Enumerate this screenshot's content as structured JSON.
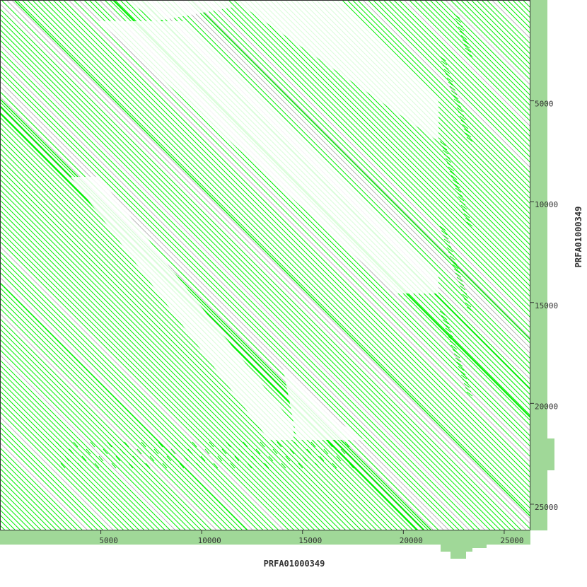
{
  "chart_data": {
    "type": "dotplot",
    "title": "",
    "xlabel": "PRFA01000349",
    "ylabel": "PRFA01000349",
    "xlim": [
      0,
      26300
    ],
    "ylim": [
      0,
      26300
    ],
    "y_inverted": true,
    "x_ticks": [
      5000,
      10000,
      15000,
      20000,
      25000
    ],
    "y_ticks": [
      5000,
      10000,
      15000,
      20000,
      25000
    ],
    "x_tick_labels": [
      "5000",
      "10000",
      "15000",
      "20000",
      "25000"
    ],
    "y_tick_labels": [
      "5000",
      "10000",
      "15000",
      "20000",
      "25000"
    ],
    "match_orientation": "diagonal",
    "colors": {
      "forward_match": "#00ee00",
      "weak_match": "#999999",
      "coverage_histogram": "#a0d898",
      "frame": "#333333"
    }
  }
}
